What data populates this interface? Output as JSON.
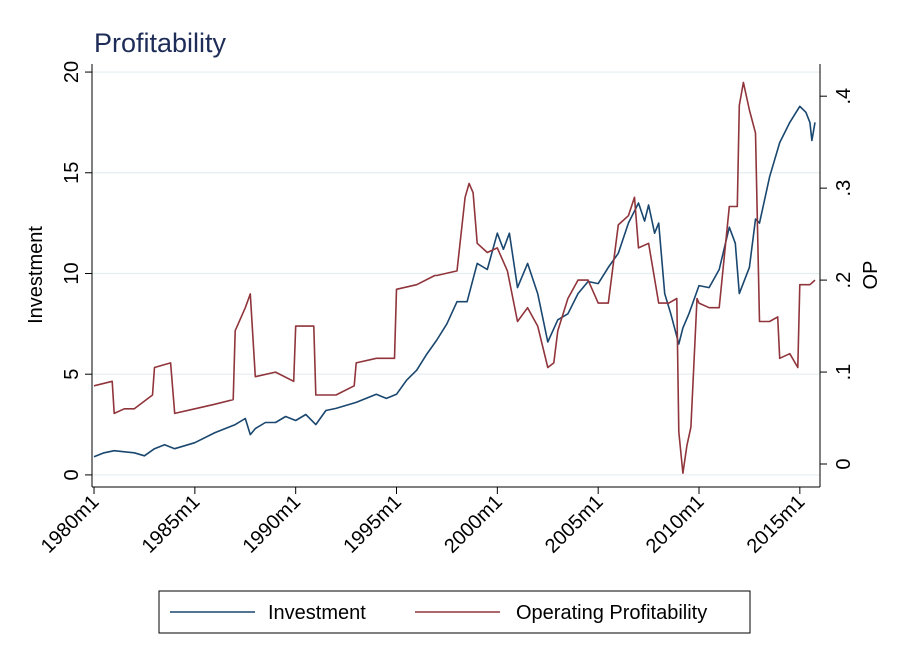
{
  "chart_data": {
    "type": "line",
    "title": "Profitability",
    "xlabel": "",
    "ylabel": "Investment",
    "y2label": "OP",
    "x_ticks": [
      "1980m1",
      "1985m1",
      "1990m1",
      "1995m1",
      "2000m1",
      "2005m1",
      "2010m1",
      "2015m1"
    ],
    "y_ticks": [
      "0",
      "5",
      "10",
      "15",
      "20"
    ],
    "y2_ticks": [
      "0",
      ".1",
      ".2",
      ".3",
      ".4"
    ],
    "xlim": [
      1979.9,
      2016.0
    ],
    "ylim": [
      -0.6,
      20.4
    ],
    "y2lim": [
      -0.025,
      0.435
    ],
    "grid": true,
    "legend_position": "bottom",
    "series": [
      {
        "name": "Investment",
        "axis": "left",
        "color": "#1a476f",
        "x": [
          1980.0,
          1980.5,
          1981.0,
          1982.0,
          1982.5,
          1983.0,
          1983.5,
          1984.0,
          1985.0,
          1986.0,
          1986.5,
          1987.0,
          1987.5,
          1987.75,
          1988.0,
          1988.5,
          1989.0,
          1989.5,
          1990.0,
          1990.5,
          1991.0,
          1991.5,
          1992.0,
          1993.0,
          1994.0,
          1994.5,
          1995.0,
          1995.5,
          1996.0,
          1996.5,
          1997.0,
          1997.5,
          1998.0,
          1998.5,
          1999.0,
          1999.5,
          2000.0,
          2000.3,
          2000.6,
          2001.0,
          2001.5,
          2002.0,
          2002.5,
          2003.0,
          2003.5,
          2004.0,
          2004.5,
          2005.0,
          2005.5,
          2006.0,
          2006.5,
          2007.0,
          2007.3,
          2007.5,
          2007.8,
          2008.0,
          2008.3,
          2008.6,
          2009.0,
          2009.2,
          2009.5,
          2010.0,
          2010.5,
          2011.0,
          2011.5,
          2011.8,
          2012.0,
          2012.5,
          2012.8,
          2013.0,
          2013.5,
          2014.0,
          2014.5,
          2015.0,
          2015.3,
          2015.5,
          2015.6,
          2015.75
        ],
        "values": [
          0.9,
          1.1,
          1.2,
          1.1,
          0.95,
          1.3,
          1.5,
          1.3,
          1.6,
          2.1,
          2.3,
          2.5,
          2.8,
          2.0,
          2.3,
          2.6,
          2.6,
          2.9,
          2.7,
          3.0,
          2.5,
          3.2,
          3.3,
          3.6,
          4.0,
          3.8,
          4.0,
          4.7,
          5.2,
          6.0,
          6.7,
          7.5,
          8.6,
          8.6,
          10.5,
          10.2,
          12.0,
          11.2,
          12.0,
          9.3,
          10.5,
          9.0,
          6.6,
          7.7,
          8.0,
          9.0,
          9.6,
          9.5,
          10.3,
          11.0,
          12.5,
          13.5,
          12.6,
          13.4,
          12.0,
          12.5,
          9.0,
          8.0,
          6.5,
          7.3,
          8.0,
          9.4,
          9.3,
          10.2,
          12.3,
          11.5,
          9.0,
          10.3,
          12.7,
          12.5,
          14.8,
          16.5,
          17.5,
          18.3,
          18.0,
          17.5,
          16.6,
          17.5
        ]
      },
      {
        "name": "Operating Profitability",
        "axis": "right",
        "color": "#90353b",
        "x": [
          1980.0,
          1980.9,
          1981.0,
          1981.5,
          1982.0,
          1982.9,
          1983.0,
          1983.8,
          1984.0,
          1985.0,
          1986.0,
          1986.9,
          1987.0,
          1987.5,
          1987.75,
          1988.0,
          1989.0,
          1989.9,
          1990.0,
          1990.9,
          1991.0,
          1992.0,
          1992.9,
          1993.0,
          1994.0,
          1994.9,
          1995.0,
          1996.0,
          1996.9,
          1997.0,
          1998.0,
          1998.4,
          1998.6,
          1998.8,
          1999.0,
          1999.5,
          2000.0,
          2000.5,
          2001.0,
          2001.5,
          2002.0,
          2002.5,
          2002.8,
          2003.0,
          2003.5,
          2004.0,
          2004.5,
          2005.0,
          2005.5,
          2006.0,
          2006.5,
          2006.8,
          2007.0,
          2007.5,
          2008.0,
          2008.5,
          2008.9,
          2009.0,
          2009.2,
          2009.4,
          2009.6,
          2009.9,
          2010.0,
          2010.5,
          2011.0,
          2011.5,
          2011.9,
          2012.0,
          2012.2,
          2012.5,
          2012.8,
          2013.0,
          2013.5,
          2013.9,
          2014.0,
          2014.5,
          2014.9,
          2015.0,
          2015.5,
          2015.75
        ],
        "values": [
          0.085,
          0.09,
          0.055,
          0.06,
          0.06,
          0.075,
          0.105,
          0.11,
          0.055,
          0.06,
          0.065,
          0.07,
          0.145,
          0.17,
          0.185,
          0.095,
          0.1,
          0.09,
          0.15,
          0.15,
          0.075,
          0.075,
          0.085,
          0.11,
          0.115,
          0.115,
          0.19,
          0.195,
          0.205,
          0.205,
          0.21,
          0.29,
          0.305,
          0.295,
          0.24,
          0.23,
          0.235,
          0.21,
          0.155,
          0.17,
          0.15,
          0.105,
          0.11,
          0.145,
          0.18,
          0.2,
          0.2,
          0.175,
          0.175,
          0.26,
          0.27,
          0.29,
          0.235,
          0.24,
          0.175,
          0.175,
          0.18,
          0.035,
          -0.01,
          0.02,
          0.04,
          0.18,
          0.175,
          0.17,
          0.17,
          0.28,
          0.28,
          0.39,
          0.415,
          0.385,
          0.36,
          0.155,
          0.155,
          0.16,
          0.115,
          0.12,
          0.105,
          0.195,
          0.195,
          0.2
        ]
      }
    ]
  }
}
